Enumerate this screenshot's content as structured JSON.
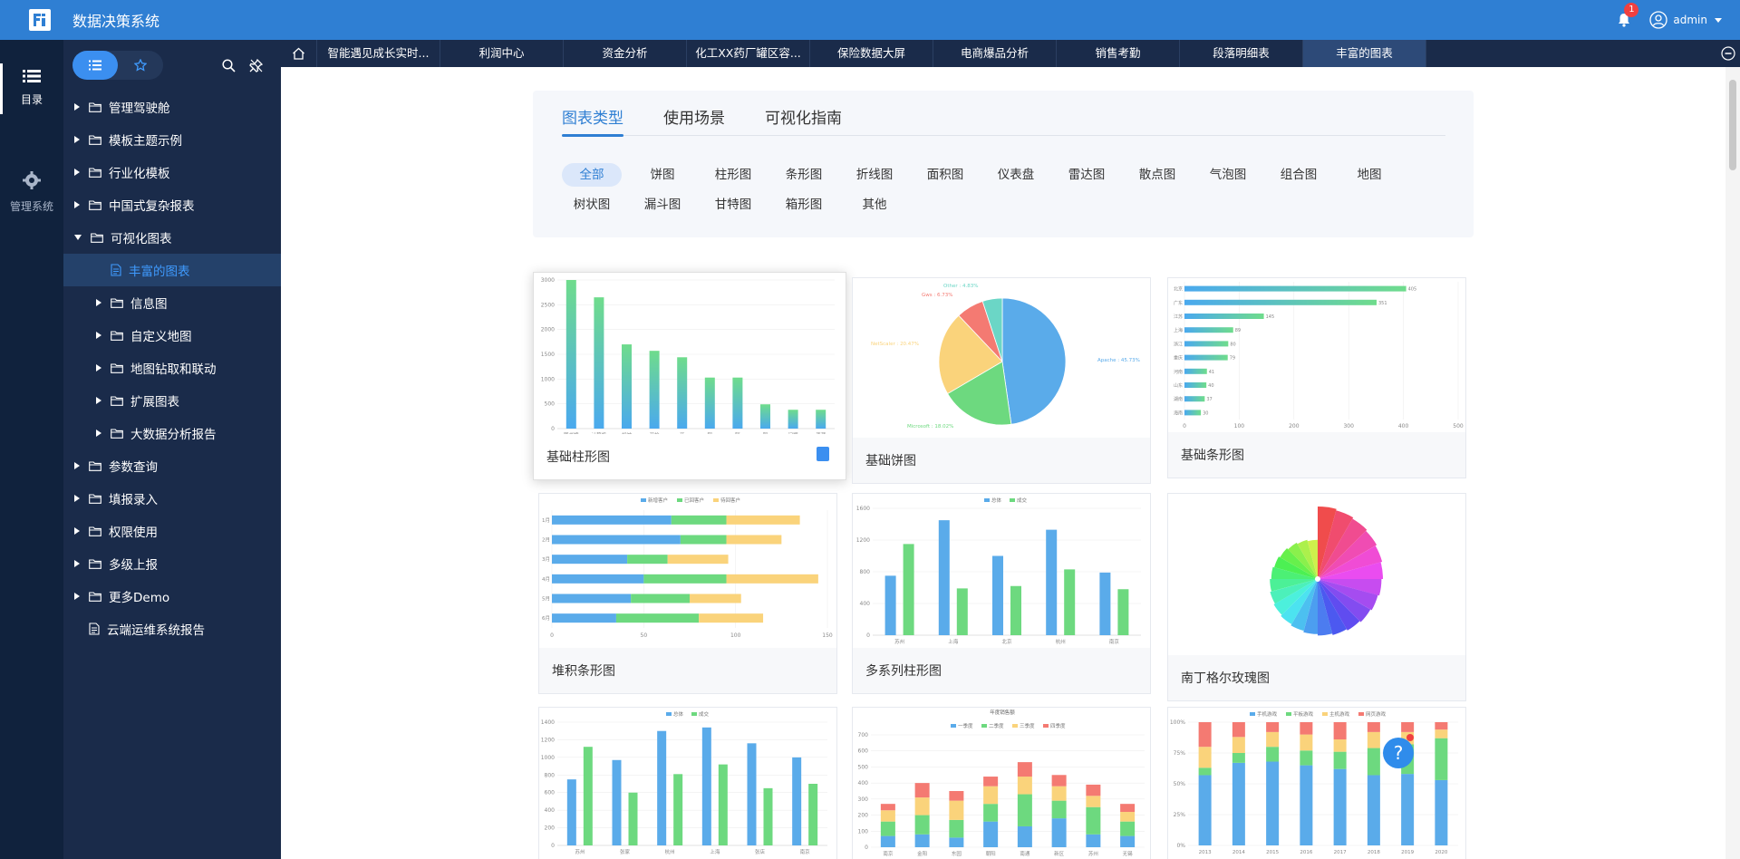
{
  "app": {
    "title": "数据决策系统",
    "notifications": "1",
    "user": "admin"
  },
  "rail": [
    {
      "label": "目录",
      "icon": "list-icon"
    },
    {
      "label": "管理系统",
      "icon": "gear-icon"
    }
  ],
  "tree": [
    {
      "label": "管理驾驶舱",
      "level": 0,
      "type": "folder",
      "state": "collapsed"
    },
    {
      "label": "模板主题示例",
      "level": 0,
      "type": "folder",
      "state": "collapsed"
    },
    {
      "label": "行业化模板",
      "level": 0,
      "type": "folder",
      "state": "collapsed"
    },
    {
      "label": "中国式复杂报表",
      "level": 0,
      "type": "folder",
      "state": "collapsed"
    },
    {
      "label": "可视化图表",
      "level": 0,
      "type": "folder",
      "state": "expanded"
    },
    {
      "label": "丰富的图表",
      "level": 1,
      "type": "doc",
      "state": "selected"
    },
    {
      "label": "信息图",
      "level": 1,
      "type": "folder",
      "state": "collapsed"
    },
    {
      "label": "自定义地图",
      "level": 1,
      "type": "folder",
      "state": "collapsed"
    },
    {
      "label": "地图钻取和联动",
      "level": 1,
      "type": "folder",
      "state": "collapsed"
    },
    {
      "label": "扩展图表",
      "level": 1,
      "type": "folder",
      "state": "collapsed"
    },
    {
      "label": "大数据分析报告",
      "level": 1,
      "type": "folder",
      "state": "collapsed"
    },
    {
      "label": "参数查询",
      "level": 0,
      "type": "folder",
      "state": "collapsed"
    },
    {
      "label": "填报录入",
      "level": 0,
      "type": "folder",
      "state": "collapsed"
    },
    {
      "label": "权限使用",
      "level": 0,
      "type": "folder",
      "state": "collapsed"
    },
    {
      "label": "多级上报",
      "level": 0,
      "type": "folder",
      "state": "collapsed"
    },
    {
      "label": "更多Demo",
      "level": 0,
      "type": "folder",
      "state": "collapsed"
    },
    {
      "label": "云端运维系统报告",
      "level": 0,
      "type": "doc",
      "state": "none"
    }
  ],
  "tabs": [
    "智能遇见成长实时...",
    "利润中心",
    "资金分析",
    "化工XX药厂罐区容...",
    "保险数据大屏",
    "电商爆品分析",
    "销售考勤",
    "段落明细表",
    "丰富的图表"
  ],
  "activeTab": 8,
  "filter": {
    "tabs": [
      "图表类型",
      "使用场景",
      "可视化指南"
    ],
    "activeTab": 0,
    "chips": [
      "全部",
      "饼图",
      "柱形图",
      "条形图",
      "折线图",
      "面积图",
      "仪表盘",
      "雷达图",
      "散点图",
      "气泡图",
      "组合图",
      "地图",
      "树状图",
      "漏斗图",
      "甘特图",
      "箱形图",
      "其他"
    ],
    "activeChip": 0
  },
  "cards": [
    {
      "caption": "基础柱形图"
    },
    {
      "caption": "基础饼图"
    },
    {
      "caption": "基础条形图"
    },
    {
      "caption": "堆积条形图"
    },
    {
      "caption": "多系列柱形图"
    },
    {
      "caption": "南丁格尔玫瑰图"
    },
    {
      "caption": ""
    },
    {
      "caption": ""
    },
    {
      "caption": ""
    }
  ],
  "chart_data": [
    {
      "type": "bar",
      "categories": [
        "图书馆",
        "计算机",
        "如神",
        "开始",
        "开",
        "阿",
        "阿",
        "阿",
        "问题",
        "资源"
      ],
      "values": [
        3000,
        2650,
        1700,
        1570,
        1440,
        1030,
        1030,
        490,
        380,
        380
      ],
      "ylim": [
        0,
        3000
      ],
      "yticks": [
        0,
        500,
        1000,
        1500,
        2000,
        2500,
        3000
      ]
    },
    {
      "type": "pie",
      "slices": [
        {
          "name": "Apache",
          "value": 45.73,
          "label": "Apache : 45.73%"
        },
        {
          "name": "Microsoft",
          "value": 18.02,
          "label": "Microsoft : 18.02%"
        },
        {
          "name": "NetScaler",
          "value": 20.47,
          "label": "NetScaler : 20.47%"
        },
        {
          "name": "Gws",
          "value": 6.73,
          "label": "Gws : 6.73%"
        },
        {
          "name": "Other",
          "value": 4.83,
          "label": "Other : 4.83%"
        }
      ]
    },
    {
      "type": "bar",
      "orientation": "horizontal",
      "categories": [
        "北京",
        "广东",
        "江苏",
        "上海",
        "浙江",
        "重庆",
        "河南",
        "山东",
        "湖南",
        "海南"
      ],
      "values": [
        405,
        351,
        145,
        89,
        80,
        79,
        41,
        40,
        37,
        30
      ],
      "xlim": [
        0,
        500
      ],
      "xticks": [
        0,
        100,
        200,
        300,
        400,
        500
      ]
    },
    {
      "type": "bar",
      "orientation": "horizontal",
      "stacked": true,
      "categories": [
        "1月",
        "2月",
        "3月",
        "4月",
        "5月",
        "6月"
      ],
      "series": [
        {
          "name": "新增客户",
          "values": [
            65,
            70,
            41,
            50,
            43,
            35
          ]
        },
        {
          "name": "已回客户",
          "values": [
            30,
            25,
            22,
            45,
            32,
            45
          ]
        },
        {
          "name": "待回客户",
          "values": [
            40,
            30,
            33,
            50,
            28,
            35
          ]
        }
      ],
      "xlim": [
        0,
        150
      ],
      "xticks": [
        0,
        50,
        100,
        150
      ]
    },
    {
      "type": "bar",
      "categories": [
        "苏州",
        "上海",
        "北京",
        "杭州",
        "南京"
      ],
      "series": [
        {
          "name": "总体",
          "values": [
            750,
            1450,
            1000,
            1330,
            790
          ]
        },
        {
          "name": "成交",
          "values": [
            1150,
            590,
            620,
            830,
            580
          ]
        }
      ],
      "ylim": [
        0,
        1600
      ],
      "yticks": [
        0,
        400,
        800,
        1200,
        1600
      ]
    },
    {
      "type": "pie",
      "variant": "rose",
      "slices": 24
    },
    {
      "type": "bar",
      "categories": [
        "苏州",
        "张家",
        "杭州",
        "上海",
        "张店",
        "南京"
      ],
      "series": [
        {
          "name": "总体",
          "values": [
            750,
            970,
            1300,
            1340,
            1160,
            1000
          ]
        },
        {
          "name": "成交",
          "values": [
            1120,
            600,
            810,
            920,
            650,
            700
          ]
        }
      ],
      "ylim": [
        0,
        1400
      ],
      "yticks": [
        0,
        200,
        400,
        600,
        800,
        1000,
        1200,
        1400
      ]
    },
    {
      "type": "bar",
      "stacked": true,
      "title": "年度销售额",
      "categories": [
        "南京",
        "金阳",
        "东园",
        "朝阳",
        "南通",
        "新区",
        "苏州",
        "无锡"
      ],
      "series": [
        {
          "name": "一季度",
          "values": [
            70,
            80,
            60,
            160,
            130,
            180,
            80,
            70
          ]
        },
        {
          "name": "二季度",
          "values": [
            90,
            120,
            110,
            110,
            200,
            110,
            170,
            90
          ]
        },
        {
          "name": "三季度",
          "values": [
            70,
            110,
            120,
            110,
            110,
            90,
            70,
            60
          ]
        },
        {
          "name": "四季度",
          "values": [
            40,
            90,
            60,
            60,
            90,
            70,
            70,
            50
          ]
        }
      ],
      "ylim": [
        0,
        700
      ],
      "yticks": [
        0,
        100,
        200,
        300,
        400,
        500,
        600,
        700
      ]
    },
    {
      "type": "bar",
      "stacked": true,
      "percent": true,
      "categories": [
        "2013",
        "2014",
        "2015",
        "2016",
        "2017",
        "2018",
        "2019",
        "2020"
      ],
      "series": [
        {
          "name": "手机游戏",
          "values": [
            57,
            67,
            68,
            65,
            62,
            57,
            58,
            53
          ]
        },
        {
          "name": "平板游戏",
          "values": [
            6,
            8,
            12,
            12,
            14,
            22,
            24,
            34
          ]
        },
        {
          "name": "主机游戏",
          "values": [
            17,
            13,
            12,
            13,
            10,
            13,
            10,
            7
          ]
        },
        {
          "name": "网页游戏",
          "values": [
            20,
            12,
            8,
            10,
            14,
            8,
            8,
            6
          ]
        }
      ],
      "ylim": [
        0,
        100
      ],
      "yticks": [
        0,
        25,
        50,
        75,
        100
      ]
    }
  ],
  "colors": {
    "primary": "#2f7fd3",
    "blue": "#5aabea",
    "green": "#6dd97f",
    "yellow": "#fad37b",
    "red": "#f47a72"
  }
}
